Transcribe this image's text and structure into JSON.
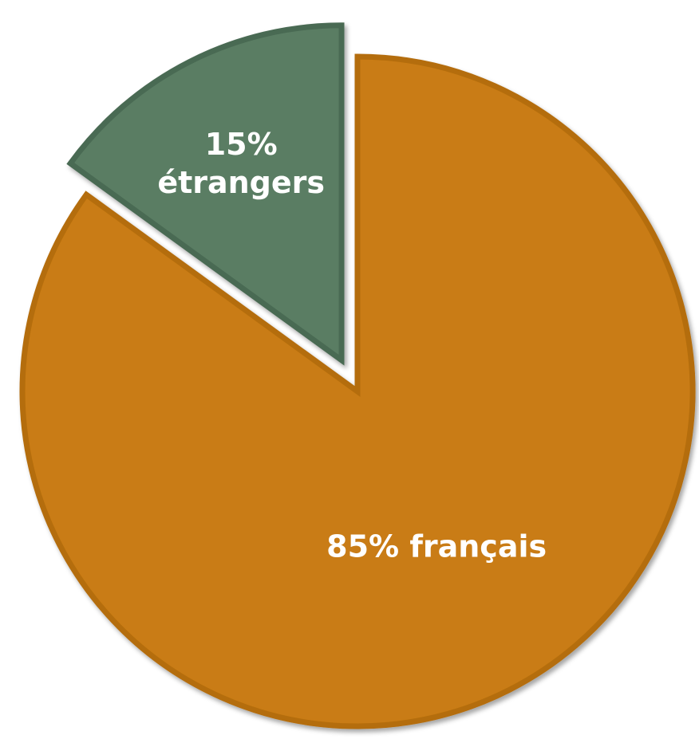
{
  "chart_data": {
    "type": "pie",
    "title": "",
    "slices": [
      {
        "label": "français",
        "value": 85,
        "label_lines": [
          "85% français"
        ],
        "color": "#c97b12",
        "stroke": "#b46d10",
        "exploded": false
      },
      {
        "label": "étrangers",
        "value": 15,
        "label_lines": [
          "15%",
          "étrangers"
        ],
        "color": "#5a7d63",
        "stroke": "#4a6a53",
        "exploded": true
      }
    ],
    "start_angle_deg": 0,
    "direction": "clockwise",
    "legend": "none"
  }
}
